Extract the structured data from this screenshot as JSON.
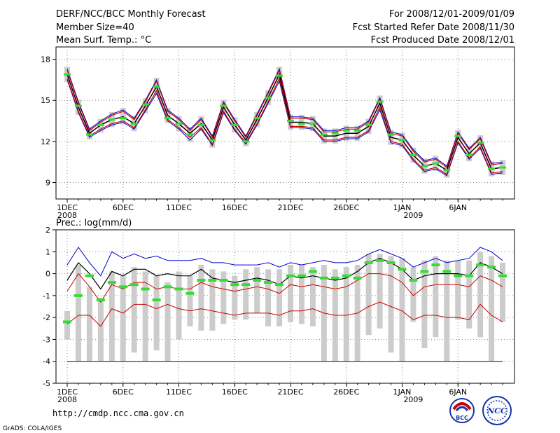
{
  "header": {
    "left": [
      "DERF/NCC/BCC Monthly Forecast",
      "Member Size=40",
      "Mean Surf. Temp.: °C"
    ],
    "right": [
      "For 2008/12/01-2009/01/09",
      "Fcst Started Refer Date 2008/11/30",
      "Fcst Produced Date 2008/12/01"
    ]
  },
  "panel2_label": "Prec.: log(mm/d)",
  "footer": {
    "url": "http://cmdp.ncc.cma.gov.cn",
    "credit": "GrADS: COLA/IGES"
  },
  "logos": {
    "bcc": "BCC",
    "ncc": "NCC"
  },
  "colors": {
    "mean": "#000000",
    "max": "#0000cc",
    "min": "#cc0000",
    "obs": "#33dd33",
    "box": "#cccccc"
  },
  "chart_data": [
    {
      "type": "line",
      "title": "Mean Surf. Temp.: °C",
      "x_tick_labels": [
        "1DEC",
        "6DEC",
        "11DEC",
        "16DEC",
        "21DEC",
        "26DEC",
        "1JAN",
        "6JAN"
      ],
      "x_year_labels": [
        "2008",
        "2009"
      ],
      "y_ticks": [
        "9",
        "12",
        "15",
        "18"
      ],
      "ylim": [
        7.8,
        18.9
      ],
      "days": 40,
      "mean": [
        16.9,
        14.5,
        12.6,
        13.2,
        13.6,
        13.8,
        13.3,
        14.6,
        16.0,
        13.9,
        13.3,
        12.6,
        13.3,
        12.1,
        14.5,
        13.2,
        12.1,
        13.6,
        15.2,
        16.9,
        13.4,
        13.4,
        13.3,
        12.4,
        12.4,
        12.6,
        12.6,
        13.1,
        14.8,
        12.3,
        12.1,
        11.0,
        10.2,
        10.4,
        9.9,
        12.3,
        11.1,
        11.9,
        10.0,
        10.1
      ],
      "upper": [
        17.2,
        14.8,
        12.8,
        13.4,
        13.9,
        14.2,
        13.6,
        14.9,
        16.4,
        14.2,
        13.6,
        12.8,
        13.6,
        12.3,
        14.8,
        13.5,
        12.3,
        13.9,
        15.5,
        17.2,
        13.7,
        13.7,
        13.6,
        12.7,
        12.7,
        12.9,
        12.9,
        13.4,
        15.1,
        12.6,
        12.4,
        11.3,
        10.5,
        10.7,
        10.1,
        12.6,
        11.4,
        12.2,
        10.3,
        10.4
      ],
      "lower": [
        16.6,
        14.2,
        12.4,
        12.9,
        13.3,
        13.5,
        13.0,
        14.3,
        15.7,
        13.6,
        13.0,
        12.3,
        13.0,
        11.8,
        14.2,
        12.9,
        11.9,
        13.3,
        14.9,
        16.6,
        13.1,
        13.1,
        13.0,
        12.1,
        12.1,
        12.3,
        12.3,
        12.8,
        14.5,
        12.0,
        11.8,
        10.7,
        9.9,
        10.1,
        9.6,
        12.0,
        10.8,
        11.6,
        9.7,
        9.8
      ],
      "min": [
        16.5,
        14.1,
        12.3,
        12.8,
        13.2,
        13.4,
        12.9,
        14.2,
        15.5,
        13.5,
        12.9,
        12.1,
        12.9,
        11.7,
        14.1,
        12.8,
        11.8,
        13.2,
        14.8,
        16.4,
        13.0,
        13.0,
        12.9,
        12.0,
        12.0,
        12.2,
        12.2,
        12.7,
        14.3,
        11.9,
        11.7,
        10.6,
        9.8,
        10.0,
        9.5,
        11.9,
        10.7,
        11.5,
        9.6,
        9.7
      ],
      "max": [
        17.3,
        14.9,
        12.9,
        13.5,
        14.0,
        14.3,
        13.7,
        15.0,
        16.5,
        14.3,
        13.7,
        12.9,
        13.7,
        12.4,
        14.9,
        13.6,
        12.4,
        14.0,
        15.6,
        17.3,
        13.8,
        13.8,
        13.7,
        12.8,
        12.8,
        13.0,
        13.0,
        13.5,
        15.2,
        12.7,
        12.5,
        11.4,
        10.6,
        10.8,
        10.2,
        12.7,
        11.5,
        12.3,
        10.4,
        10.5
      ],
      "obs": [
        16.9,
        14.6,
        12.5,
        13.2,
        13.6,
        13.7,
        13.3,
        14.7,
        16.0,
        13.7,
        13.3,
        12.5,
        13.2,
        12.1,
        14.6,
        13.2,
        12.0,
        13.7,
        15.2,
        16.8,
        13.5,
        13.3,
        13.3,
        12.5,
        12.6,
        12.8,
        12.8,
        13.2,
        14.9,
        12.5,
        12.1,
        11.0,
        10.2,
        10.4,
        9.9,
        12.4,
        11.0,
        11.9,
        10.0,
        10.1
      ]
    },
    {
      "type": "line",
      "title": "Prec.: log(mm/d)",
      "x_tick_labels": [
        "1DEC",
        "6DEC",
        "11DEC",
        "16DEC",
        "21DEC",
        "26DEC",
        "1JAN",
        "6JAN"
      ],
      "x_year_labels": [
        "2008",
        "2009"
      ],
      "y_ticks": [
        "-5",
        "-4",
        "-3",
        "-2",
        "-1",
        "0",
        "1",
        "2"
      ],
      "ylim": [
        -5,
        2
      ],
      "days": 40,
      "floor": -4,
      "max": [
        0.4,
        1.2,
        0.5,
        -0.1,
        1.0,
        0.7,
        0.9,
        0.7,
        0.8,
        0.6,
        0.6,
        0.6,
        0.7,
        0.5,
        0.5,
        0.4,
        0.4,
        0.4,
        0.5,
        0.3,
        0.5,
        0.4,
        0.5,
        0.6,
        0.5,
        0.5,
        0.6,
        0.9,
        1.1,
        0.9,
        0.7,
        0.3,
        0.5,
        0.7,
        0.5,
        0.6,
        0.7,
        1.2,
        1.0,
        0.6
      ],
      "mean": [
        -0.3,
        0.5,
        0.0,
        -0.7,
        0.1,
        -0.1,
        0.2,
        0.2,
        -0.1,
        0.0,
        -0.1,
        -0.1,
        0.2,
        -0.2,
        -0.3,
        -0.4,
        -0.3,
        -0.2,
        -0.3,
        -0.5,
        -0.1,
        -0.2,
        -0.1,
        -0.2,
        -0.3,
        -0.2,
        0.1,
        0.5,
        0.7,
        0.5,
        0.2,
        -0.3,
        -0.1,
        0.0,
        0.0,
        0.0,
        -0.1,
        0.5,
        0.3,
        0.0
      ],
      "min_hi": [
        -0.8,
        0.0,
        -0.6,
        -1.3,
        -0.5,
        -0.7,
        -0.4,
        -0.4,
        -0.7,
        -0.6,
        -0.7,
        -0.7,
        -0.4,
        -0.6,
        -0.7,
        -0.8,
        -0.7,
        -0.6,
        -0.7,
        -0.9,
        -0.5,
        -0.6,
        -0.5,
        -0.6,
        -0.7,
        -0.6,
        -0.3,
        0.0,
        0.0,
        -0.1,
        -0.4,
        -1.0,
        -0.6,
        -0.5,
        -0.5,
        -0.5,
        -0.6,
        -0.1,
        -0.3,
        -0.6
      ],
      "min_lo": [
        -2.3,
        -1.9,
        -1.9,
        -2.4,
        -1.6,
        -1.8,
        -1.4,
        -1.4,
        -1.6,
        -1.4,
        -1.6,
        -1.7,
        -1.6,
        -1.7,
        -1.8,
        -1.9,
        -1.8,
        -1.8,
        -1.8,
        -1.9,
        -1.7,
        -1.7,
        -1.6,
        -1.8,
        -1.9,
        -1.9,
        -1.8,
        -1.5,
        -1.3,
        -1.5,
        -1.7,
        -2.1,
        -1.9,
        -1.9,
        -2.0,
        -2.0,
        -2.1,
        -1.4,
        -1.9,
        -2.2
      ],
      "box_top": [
        -1.7,
        0.4,
        -0.6,
        -1.1,
        0.1,
        -0.1,
        0.3,
        0.1,
        -0.1,
        -0.4,
        0.1,
        -0.1,
        0.4,
        0.2,
        0.1,
        -0.1,
        0.2,
        0.3,
        0.2,
        0.2,
        0.4,
        0.4,
        0.3,
        0.4,
        0.2,
        0.3,
        0.4,
        0.9,
        0.9,
        0.8,
        0.7,
        0.3,
        0.6,
        0.8,
        0.6,
        0.6,
        0.6,
        1.0,
        0.8,
        0.5
      ],
      "box_bottom": [
        -3.0,
        -4.0,
        -4.0,
        -4.0,
        -4.0,
        -4.0,
        -3.6,
        -4.0,
        -3.5,
        -4.0,
        -3.0,
        -2.4,
        -2.6,
        -2.6,
        -2.3,
        -2.1,
        -2.1,
        -1.8,
        -2.4,
        -2.4,
        -2.2,
        -2.3,
        -2.4,
        -4.0,
        -4.0,
        -4.0,
        -4.0,
        -2.8,
        -2.5,
        -3.6,
        -4.0,
        -2.2,
        -3.4,
        -2.9,
        -4.0,
        -2.1,
        -2.5,
        -2.9,
        -4.0,
        -2.2
      ],
      "obs": [
        -2.2,
        -1.0,
        -0.1,
        -1.2,
        -0.4,
        -0.6,
        -0.5,
        -0.7,
        -1.2,
        -0.6,
        -0.7,
        -0.9,
        -0.3,
        -0.3,
        -0.3,
        -0.5,
        -0.5,
        -0.3,
        -0.4,
        -0.5,
        -0.1,
        -0.1,
        0.1,
        -0.2,
        -0.2,
        -0.1,
        -0.2,
        0.5,
        0.6,
        0.5,
        0.2,
        -0.3,
        0.1,
        0.4,
        0.1,
        -0.1,
        -0.1,
        0.4,
        0.3,
        -0.1
      ]
    }
  ]
}
